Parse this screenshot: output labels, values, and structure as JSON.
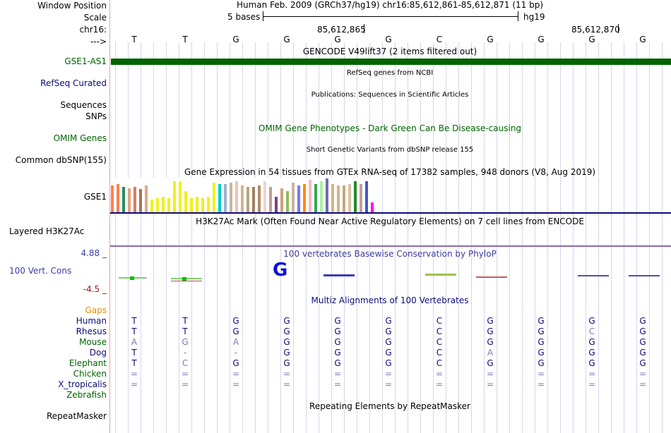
{
  "labels": {
    "window_position": "Window Position",
    "scale": "Scale",
    "chrom": "chr16:",
    "strand": "--->",
    "gse1_as1": "GSE1-AS1",
    "refseq": "RefSeq Curated",
    "sequences": "Sequences",
    "snps": "SNPs",
    "omim": "OMIM Genes",
    "dbsnp": "Common dbSNP(155)",
    "gse1": "GSE1",
    "h3k27ac": "Layered H3K27Ac",
    "cons_max": "4.88 _",
    "cons_label": "100 Vert. Cons",
    "cons_min": "-4.5 _",
    "gaps": "Gaps",
    "species": [
      "Human",
      "Rhesus",
      "Mouse",
      "Dog",
      "Elephant",
      "Chicken",
      "X_tropicalis",
      "Zebrafish"
    ],
    "repeatmasker": "RepeatMasker"
  },
  "header": {
    "position": "Human Feb. 2009 (GRCh37/hg19)   chr16:85,612,861-85,612,871 (11 bp)",
    "scale_text": "5 bases",
    "assembly": "hg19",
    "coord1": "85,612,865",
    "coord2": "85,612,870"
  },
  "bases": [
    "T",
    "T",
    "G",
    "G",
    "G",
    "G",
    "C",
    "G",
    "G",
    "G",
    "G"
  ],
  "tracks": {
    "gencode": "GENCODE V49lift37 (2 items filtered out)",
    "refseq": "RefSeq genes from NCBI",
    "publications": "Publications: Sequences in Scientific Articles",
    "omim": "OMIM Gene Phenotypes - Dark Green Can Be Disease-causing",
    "dbsnp": "Short Genetic Variants from dbSNP release 155",
    "gtex": "Gene Expression in 54 tissues from GTEx RNA-seq of 17382 samples, 948 donors (V8, Aug 2019)",
    "h3k27ac": "H3K27Ac Mark (Often Found Near Active Regulatory Elements) on 7 cell lines from ENCODE",
    "phylop": "100 vertebrates Basewise Conservation by PhyloP",
    "multiz": "Multiz Alignments of 100 Vertebrates",
    "repeatmasker": "Repeating Elements by RepeatMasker"
  },
  "conservation_logo": "G",
  "alignments": [
    [
      "T",
      "T",
      "G",
      "G",
      "G",
      "G",
      "C",
      "G",
      "G",
      "G",
      "G"
    ],
    [
      "T",
      "T",
      "G",
      "G",
      "G",
      "G",
      "C",
      "G",
      "G",
      "C",
      "G"
    ],
    [
      "A",
      "G",
      "A",
      "G",
      "G",
      "G",
      "C",
      "G",
      "G",
      "G",
      "G"
    ],
    [
      "T",
      "-",
      "-",
      "G",
      "G",
      "G",
      "C",
      "A",
      "G",
      "G",
      "G"
    ],
    [
      "T",
      "C",
      "G",
      "G",
      "G",
      "G",
      "C",
      "G",
      "G",
      "G",
      "G"
    ],
    [
      "=",
      "=",
      "=",
      "=",
      "=",
      "=",
      "=",
      "=",
      "=",
      "=",
      "="
    ],
    [
      "=",
      "=",
      "=",
      "=",
      "=",
      "=",
      "=",
      "=",
      "=",
      "=",
      "="
    ]
  ],
  "gtex_values": [
    38,
    40,
    36,
    34,
    36,
    33,
    38,
    18,
    20,
    22,
    20,
    44,
    44,
    30,
    20,
    22,
    20,
    22,
    42,
    40,
    40,
    42,
    44,
    38,
    36,
    36,
    38,
    44,
    36,
    22,
    34,
    30,
    42,
    38,
    40,
    46,
    40,
    44,
    48,
    40,
    38,
    38,
    40,
    44,
    40,
    44,
    14
  ],
  "gtex_colors": [
    "#ff7f50",
    "#ff7f50",
    "#2e8b57",
    "#e0a080",
    "#d08060",
    "#a0785a",
    "#ddaa88",
    "#f0f020",
    "#f0f020",
    "#f0f020",
    "#f0f020",
    "#f0f020",
    "#f0f020",
    "#f0f020",
    "#f0f020",
    "#f0f020",
    "#f0f020",
    "#f0f020",
    "#f0f020",
    "#00cdcd",
    "#9ab3d0",
    "#c8b4a0",
    "#e6c8b4",
    "#d2b48c",
    "#bba080",
    "#a08060",
    "#b48c64",
    "#eed5d2",
    "#c0a090",
    "#7b3f8f",
    "#d2a07a",
    "#8fbc5a",
    "#c8b4a0",
    "#7777ff",
    "#ff8c00",
    "#ffb6c1",
    "#32a850",
    "#aaf0aa",
    "#6e6eaa",
    "#d2b48c",
    "#d2b48c",
    "#c8a880",
    "#e0c0a0",
    "#228b22",
    "#c0a0a0",
    "#3c5ac8",
    "#ff00ff"
  ]
}
